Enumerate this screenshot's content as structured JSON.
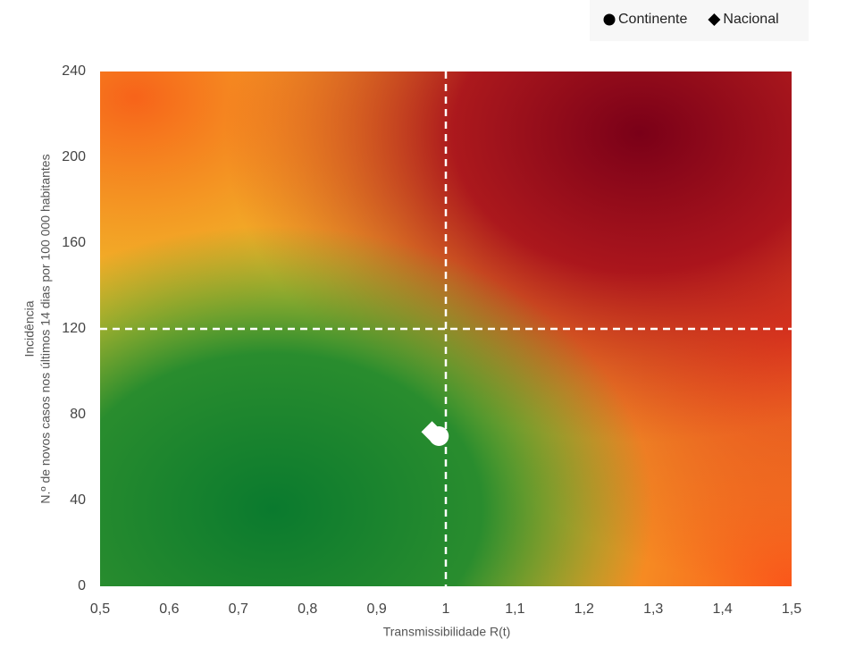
{
  "chart_data": {
    "type": "scatter",
    "x_label": "Transmissibilidade  R(t)",
    "y_label": [
      "Incidência",
      "N.º de novos  casos nos últimos 14 dias por 100 000 habitantes"
    ],
    "series": [
      {
        "name": "Continente",
        "marker": "circle",
        "color": "#ffffff",
        "x": [
          0.99
        ],
        "values": [
          70
        ]
      },
      {
        "name": "Nacional",
        "marker": "diamond",
        "color": "#ffffff",
        "x": [
          0.98
        ],
        "values": [
          72
        ]
      }
    ],
    "reference_lines": {
      "x": 1,
      "y": 120
    },
    "xlim": [
      0.5,
      1.5
    ],
    "xticks": [
      {
        "value": 0.5,
        "label": "0,5"
      },
      {
        "value": 0.6,
        "label": "0,6"
      },
      {
        "value": 0.7,
        "label": "0,7"
      },
      {
        "value": 0.8,
        "label": "0,8"
      },
      {
        "value": 0.9,
        "label": "0,9"
      },
      1,
      {
        "value": 1.1,
        "label": "1,1"
      },
      {
        "value": 1.2,
        "label": "1,2"
      },
      {
        "value": 1.3,
        "label": "1,3"
      },
      {
        "value": 1.4,
        "label": "1,4"
      },
      {
        "value": 1.5,
        "label": "1,5"
      }
    ],
    "ylim": [
      0,
      240
    ],
    "yticks": [
      0,
      40,
      80,
      120,
      160,
      200,
      240
    ],
    "legend": "top-right"
  }
}
